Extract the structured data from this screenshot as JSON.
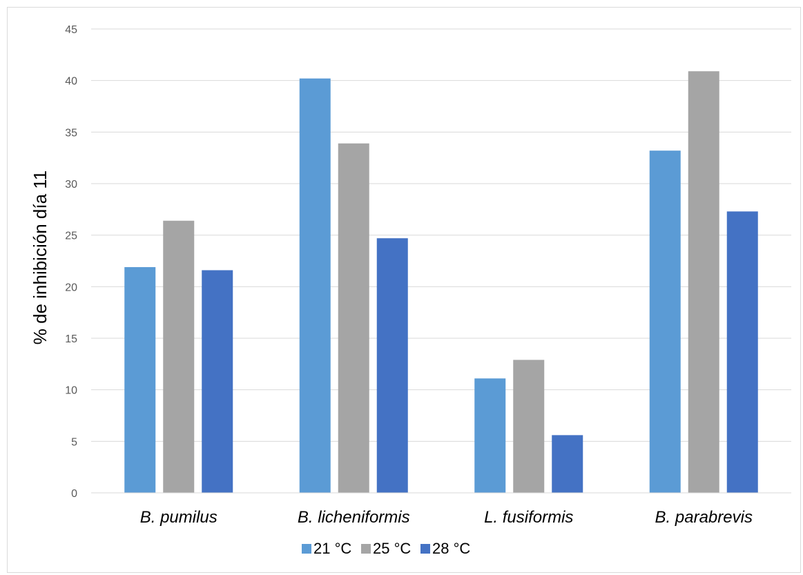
{
  "chart_data": {
    "type": "bar",
    "title": "",
    "xlabel": "",
    "ylabel": "% de inhibición día 11",
    "ylim": [
      0,
      45
    ],
    "yticks": [
      0,
      5,
      10,
      15,
      20,
      25,
      30,
      35,
      40,
      45
    ],
    "grid": true,
    "legend_position": "bottom",
    "categories": [
      "B. pumilus",
      "B. licheniformis",
      "L. fusiformis",
      "B. parabrevis"
    ],
    "series": [
      {
        "name": "21 °C",
        "color": "#5b9bd5",
        "values": [
          21.9,
          40.2,
          11.1,
          33.2
        ]
      },
      {
        "name": "25 °C",
        "color": "#a5a5a5",
        "values": [
          26.4,
          33.9,
          12.9,
          40.9
        ]
      },
      {
        "name": "28 °C",
        "color": "#4472c4",
        "values": [
          21.6,
          24.7,
          5.6,
          27.3
        ]
      }
    ]
  }
}
